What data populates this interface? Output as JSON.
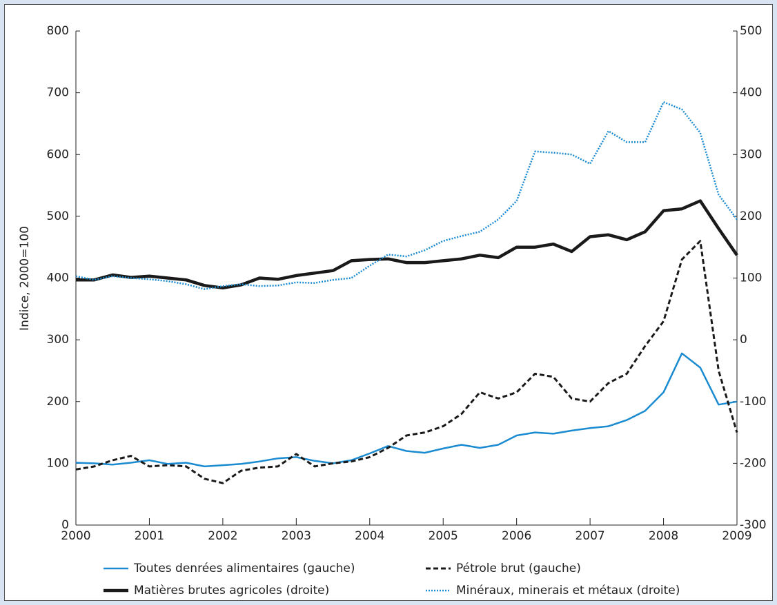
{
  "chart_data": {
    "type": "line",
    "y_label": "Indice, 2000=100",
    "x": [
      2000,
      2000.25,
      2000.5,
      2000.75,
      2001,
      2001.25,
      2001.5,
      2001.75,
      2002,
      2002.25,
      2002.5,
      2002.75,
      2003,
      2003.25,
      2003.5,
      2003.75,
      2004,
      2004.25,
      2004.5,
      2004.75,
      2005,
      2005.25,
      2005.5,
      2005.75,
      2006,
      2006.25,
      2006.5,
      2006.75,
      2007,
      2007.25,
      2007.5,
      2007.75,
      2008,
      2008.25,
      2008.5,
      2008.75,
      2009
    ],
    "xlim": [
      2000,
      2009
    ],
    "xticks": [
      2000,
      2001,
      2002,
      2003,
      2004,
      2005,
      2006,
      2007,
      2008,
      2009
    ],
    "ylim": [
      0,
      800
    ],
    "yticks": [
      0,
      100,
      200,
      300,
      400,
      500,
      600,
      700,
      800
    ],
    "y2lim": [
      -300,
      500
    ],
    "y2ticks": [
      -300,
      -200,
      -100,
      0,
      100,
      200,
      300,
      400,
      500
    ],
    "series": [
      {
        "name": "Toutes denrées alimentaires (gauche)",
        "color": "#1a8bd0",
        "line_style": "solid",
        "values": [
          101,
          100,
          98,
          101,
          105,
          99,
          101,
          95,
          97,
          99,
          103,
          108,
          110,
          104,
          100,
          105,
          116,
          128,
          120,
          117,
          124,
          130,
          125,
          130,
          145,
          150,
          148,
          153,
          157,
          160,
          170,
          185,
          215,
          278,
          255,
          195,
          200
        ]
      },
      {
        "name": "Pétrole brut (gauche)",
        "color": "#1a1a1a",
        "line_style": "dashed",
        "values": [
          90,
          95,
          105,
          112,
          95,
          97,
          95,
          75,
          68,
          88,
          93,
          95,
          115,
          95,
          100,
          103,
          110,
          125,
          145,
          150,
          160,
          180,
          215,
          205,
          215,
          245,
          240,
          205,
          200,
          230,
          245,
          290,
          330,
          430,
          460,
          250,
          150
        ]
      },
      {
        "name": "Matières brutes agricoles (droite)",
        "color": "#1a1a1a",
        "line_style": "thick",
        "axis": "y2",
        "values": [
          97,
          97,
          105,
          101,
          103,
          100,
          97,
          88,
          84,
          89,
          100,
          98,
          104,
          108,
          112,
          128,
          130,
          131,
          125,
          125,
          128,
          131,
          137,
          133,
          150,
          150,
          155,
          143,
          167,
          170,
          162,
          175,
          209,
          212,
          225,
          180,
          137
        ]
      },
      {
        "name": "Minéraux, minerais et métaux (droite)",
        "color": "#1a8bd0",
        "line_style": "dotted",
        "axis": "y2",
        "values": [
          103,
          97,
          103,
          100,
          98,
          95,
          90,
          82,
          87,
          90,
          87,
          88,
          93,
          92,
          97,
          100,
          120,
          138,
          135,
          145,
          160,
          168,
          175,
          195,
          225,
          305,
          303,
          300,
          285,
          338,
          320,
          320,
          385,
          373,
          335,
          235,
          195
        ]
      }
    ]
  }
}
